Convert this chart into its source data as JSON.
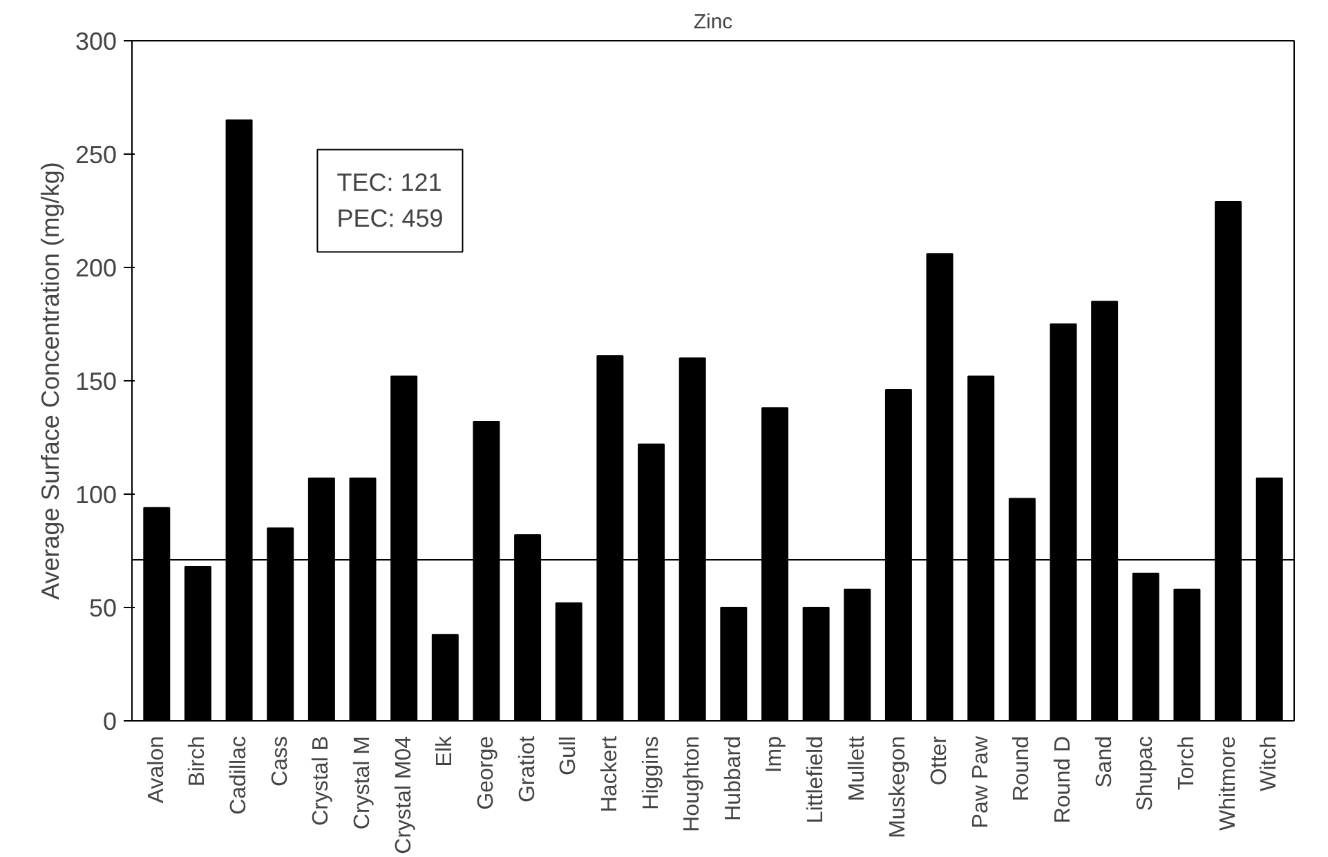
{
  "chart_data": {
    "type": "bar",
    "title": "Zinc",
    "ylabel": "Average Surface Concentration (mg/kg)",
    "categories": [
      "Avalon",
      "Birch",
      "Cadillac",
      "Cass",
      "Crystal B",
      "Crystal M",
      "Crystal M04",
      "Elk",
      "George",
      "Gratiot",
      "Gull",
      "Hackert",
      "Higgins",
      "Houghton",
      "Hubbard",
      "Imp",
      "Littlefield",
      "Mullett",
      "Muskegon",
      "Otter",
      "Paw Paw",
      "Round",
      "Round D",
      "Sand",
      "Shupac",
      "Torch",
      "Whitmore",
      "Witch"
    ],
    "values": [
      94,
      68,
      265,
      85,
      107,
      107,
      152,
      38,
      132,
      82,
      52,
      161,
      122,
      160,
      50,
      138,
      50,
      58,
      146,
      206,
      152,
      98,
      175,
      185,
      65,
      58,
      229,
      107
    ],
    "color": "#000000",
    "ylim": [
      0,
      300
    ],
    "yticks": [
      0,
      50,
      100,
      150,
      200,
      250,
      300
    ],
    "ref_lines": [
      {
        "axis": "y",
        "value": 71,
        "label": null,
        "color": "#000000"
      }
    ],
    "annotations": [
      "TEC: 121\nPEC: 459"
    ],
    "grid": false
  }
}
